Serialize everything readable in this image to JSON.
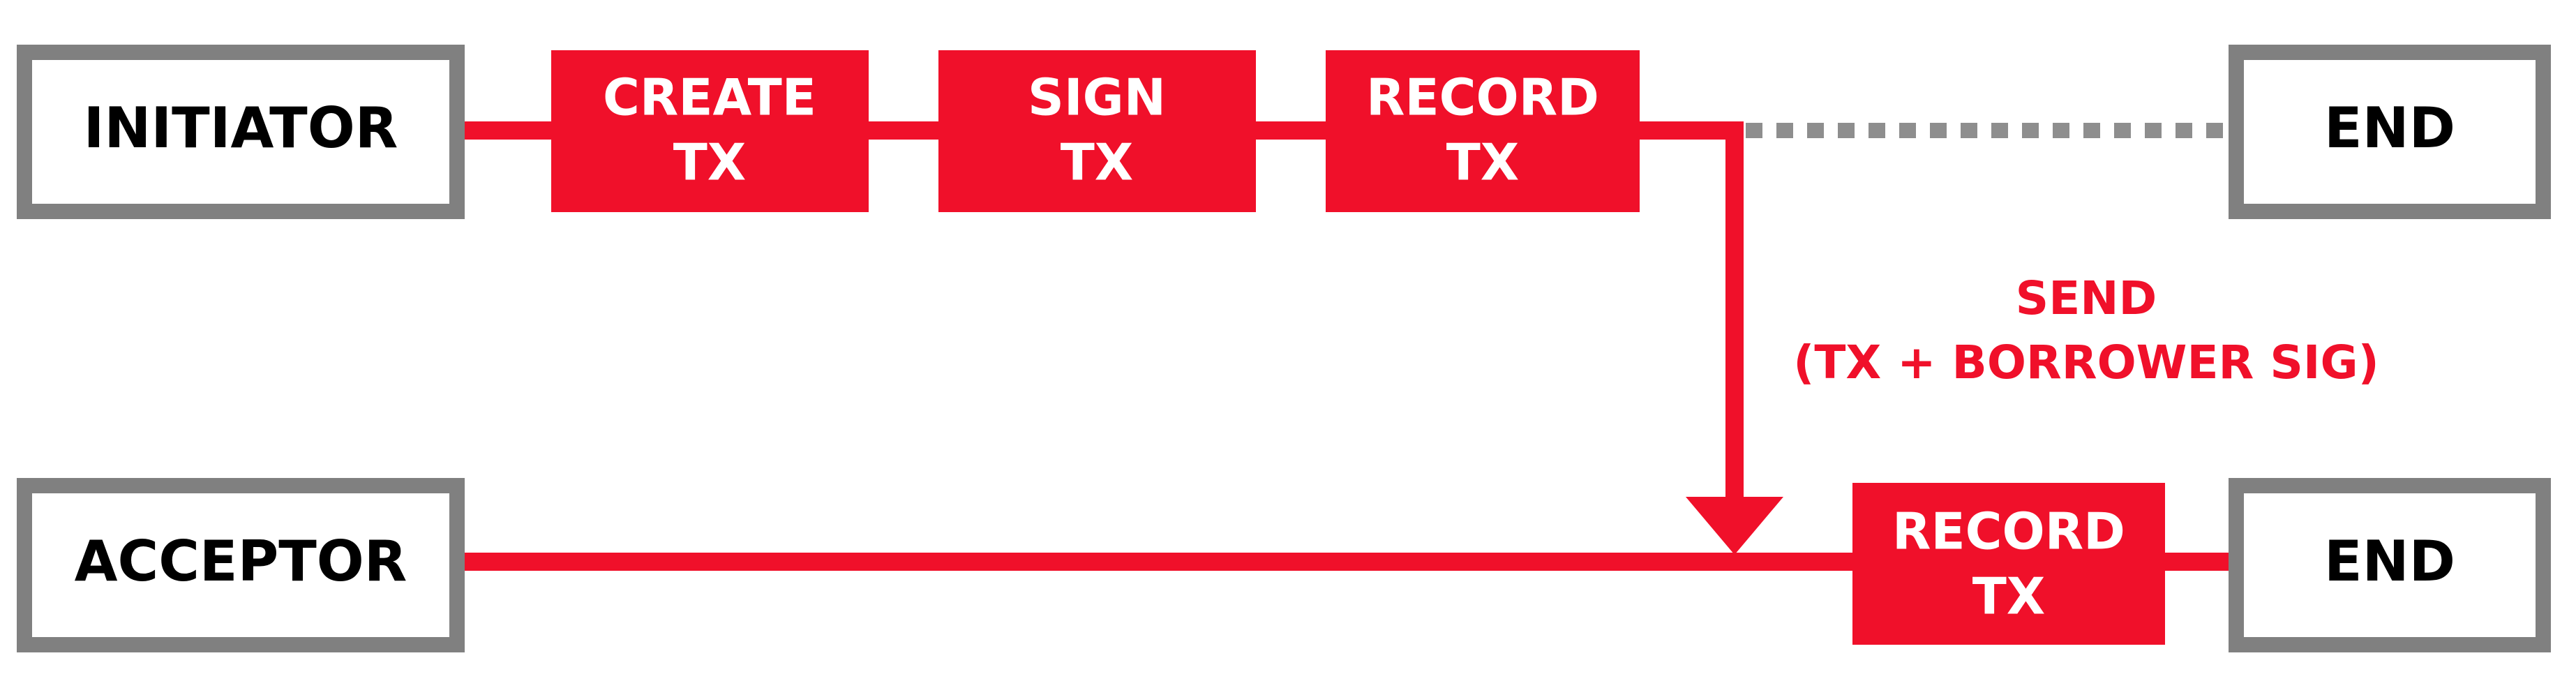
{
  "colors": {
    "accent": "#f0102a",
    "party_border": "#808080",
    "dotted_line": "#8e8e8e",
    "party_text": "#000000",
    "step_text": "#ffffff"
  },
  "parties": {
    "initiator": "INITIATOR",
    "acceptor": "ACCEPTOR"
  },
  "end_labels": {
    "top": "END",
    "bottom": "END"
  },
  "steps": {
    "create_tx": [
      "CREATE",
      "TX"
    ],
    "sign_tx": [
      "SIGN",
      "TX"
    ],
    "record_tx_initiator": [
      "RECORD",
      "TX"
    ],
    "record_tx_acceptor": [
      "RECORD",
      "TX"
    ]
  },
  "message": {
    "line1": "SEND",
    "line2": "(TX + BORROWER SIG)"
  }
}
